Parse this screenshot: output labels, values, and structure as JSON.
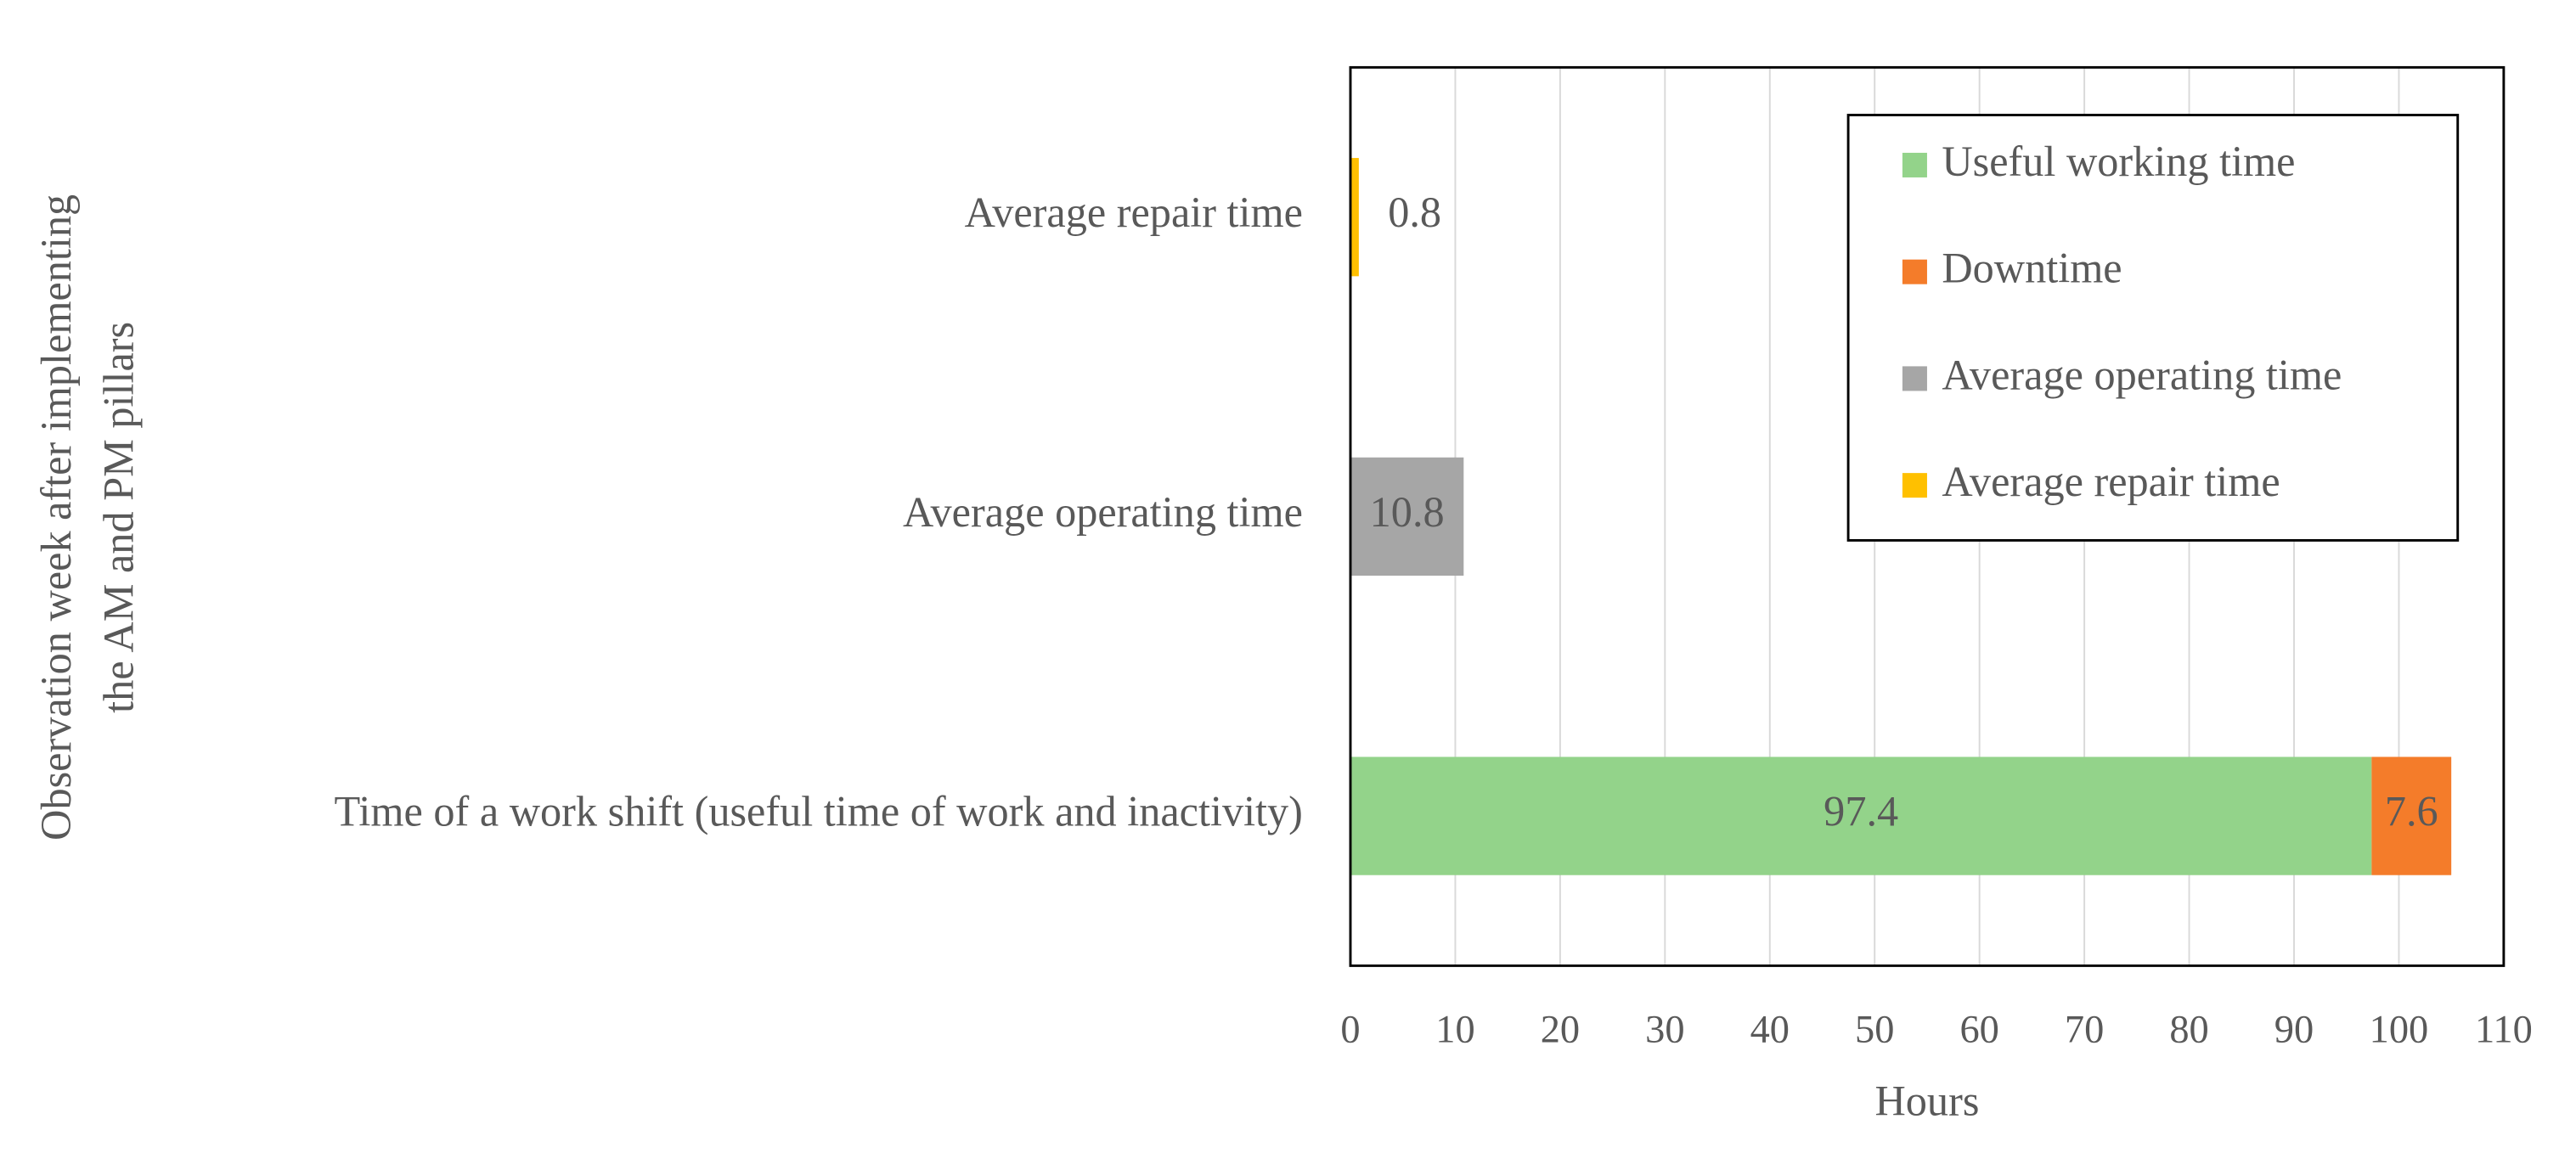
{
  "chart_data": {
    "type": "hbar-stacked",
    "xlabel": "Hours",
    "ylabel": [
      "Observation week after implementing",
      "the AM and PM pillars"
    ],
    "categories": [
      "Time of a work shift (useful time of work and inactivity)",
      "Average operating time",
      "Average repair time"
    ],
    "series": [
      {
        "name": "Useful working time",
        "color": "#93d38a",
        "values": [
          97.4,
          null,
          null
        ]
      },
      {
        "name": "Downtime",
        "color": "#f47c2a",
        "values": [
          7.6,
          null,
          null
        ]
      },
      {
        "name": "Average operating time",
        "color": "#a6a6a6",
        "values": [
          null,
          10.8,
          null
        ]
      },
      {
        "name": "Average repair time",
        "color": "#ffc000",
        "values": [
          null,
          null,
          0.8
        ]
      }
    ],
    "xlim": [
      0,
      110
    ],
    "xticks": [
      0,
      10,
      20,
      30,
      40,
      50,
      60,
      70,
      80,
      90,
      100,
      110
    ],
    "grid": true,
    "legend": "upper right"
  }
}
